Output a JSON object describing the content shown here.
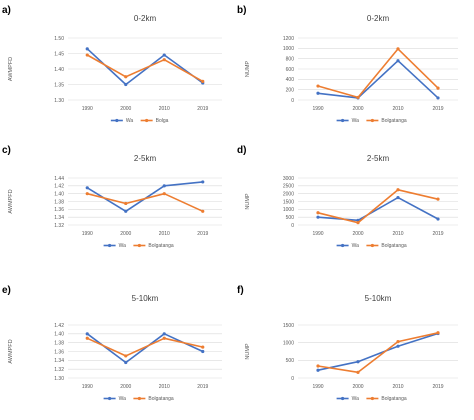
{
  "chart_data": [
    {
      "panel": "a)",
      "type": "line",
      "title": "0-2km",
      "ylabel": "AWMPFD",
      "categories": [
        "1990",
        "2000",
        "2010",
        "2019"
      ],
      "yticks": [
        "1.30",
        "1.35",
        "1.40",
        "1.45",
        "1.50"
      ],
      "ylim": [
        1.3,
        1.5
      ],
      "grid": true,
      "legend": "bottom",
      "series": [
        {
          "name": "Wa",
          "color": "#4472C4",
          "values": [
            1.465,
            1.35,
            1.445,
            1.355
          ]
        },
        {
          "name": "Bolga",
          "color": "#ED7D31",
          "values": [
            1.445,
            1.375,
            1.43,
            1.36
          ]
        }
      ]
    },
    {
      "panel": "b)",
      "type": "line",
      "title": "0-2km",
      "ylabel": "NUMP",
      "categories": [
        "1990",
        "2000",
        "2010",
        "2019"
      ],
      "yticks": [
        "0",
        "200",
        "400",
        "600",
        "800",
        "1000",
        "1200"
      ],
      "ylim": [
        0,
        1200
      ],
      "grid": true,
      "legend": "bottom",
      "series": [
        {
          "name": "Wa",
          "color": "#4472C4",
          "values": [
            130,
            40,
            760,
            40
          ]
        },
        {
          "name": "Bolgatanga",
          "color": "#ED7D31",
          "values": [
            270,
            50,
            990,
            230
          ]
        }
      ]
    },
    {
      "panel": "c)",
      "type": "line",
      "title": "2-5km",
      "ylabel": "AWMPFD",
      "categories": [
        "1990",
        "2000",
        "2010",
        "2019"
      ],
      "yticks": [
        "1.32",
        "1.34",
        "1.36",
        "1.38",
        "1.40",
        "1.42",
        "1.44"
      ],
      "ylim": [
        1.32,
        1.44
      ],
      "grid": true,
      "legend": "bottom",
      "series": [
        {
          "name": "Wa",
          "color": "#4472C4",
          "values": [
            1.415,
            1.355,
            1.42,
            1.43
          ]
        },
        {
          "name": "Bolgatanga",
          "color": "#ED7D31",
          "values": [
            1.4,
            1.375,
            1.4,
            1.355
          ]
        }
      ]
    },
    {
      "panel": "d)",
      "type": "line",
      "title": "2-5km",
      "ylabel": "NUMP",
      "categories": [
        "1990",
        "2000",
        "2010",
        "2019"
      ],
      "yticks": [
        "0",
        "500",
        "1000",
        "1500",
        "2000",
        "2500",
        "3000"
      ],
      "ylim": [
        0,
        3000
      ],
      "grid": true,
      "legend": "bottom",
      "series": [
        {
          "name": "Wa",
          "color": "#4472C4",
          "values": [
            500,
            300,
            1750,
            380
          ]
        },
        {
          "name": "Bolgatanga",
          "color": "#ED7D31",
          "values": [
            780,
            150,
            2250,
            1650
          ]
        }
      ]
    },
    {
      "panel": "e)",
      "type": "line",
      "title": "5-10km",
      "ylabel": "AWMPFD",
      "categories": [
        "1990",
        "2000",
        "2010",
        "2019"
      ],
      "yticks": [
        "1.30",
        "1.32",
        "1.34",
        "1.36",
        "1.38",
        "1.40",
        "1.42"
      ],
      "ylim": [
        1.3,
        1.42
      ],
      "grid": true,
      "legend": "bottom",
      "series": [
        {
          "name": "Wa",
          "color": "#4472C4",
          "values": [
            1.4,
            1.335,
            1.4,
            1.36
          ]
        },
        {
          "name": "Bolgatanga",
          "color": "#ED7D31",
          "values": [
            1.39,
            1.35,
            1.39,
            1.37
          ]
        }
      ]
    },
    {
      "panel": "f)",
      "type": "line",
      "title": "5-10km",
      "ylabel": "NUMP",
      "categories": [
        "1990",
        "2000",
        "2010",
        "2019"
      ],
      "yticks": [
        "0",
        "500",
        "1000",
        "1500"
      ],
      "ylim": [
        0,
        1500
      ],
      "grid": true,
      "legend": "bottom",
      "series": [
        {
          "name": "Wa",
          "color": "#4472C4",
          "values": [
            220,
            460,
            900,
            1260
          ]
        },
        {
          "name": "Bolgatanga",
          "color": "#ED7D31",
          "values": [
            340,
            160,
            1030,
            1280
          ]
        }
      ]
    }
  ]
}
